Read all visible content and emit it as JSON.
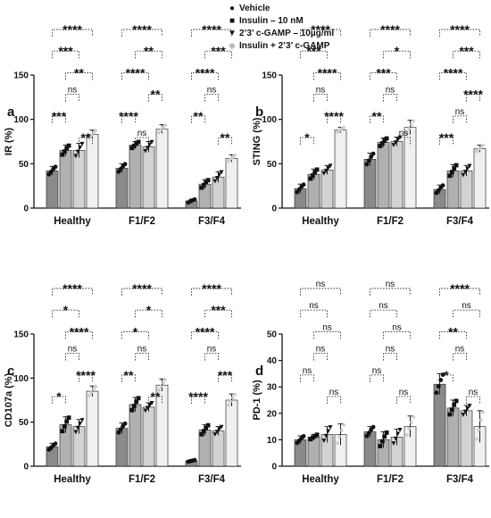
{
  "legend": {
    "items": [
      {
        "label": "Vehicle",
        "fill": "#8a8a8a",
        "marker": "●"
      },
      {
        "label": "Insulin – 10 nM",
        "fill": "#b0b0b0",
        "marker": "■"
      },
      {
        "label": "2’3’ c-GAMP – 10µg/ml",
        "fill": "#d2d2d2",
        "marker": "▼"
      },
      {
        "label": "Insulin + 2’3’ c-GAMP",
        "fill": "#f0f0f0",
        "marker": "◆"
      }
    ]
  },
  "chart_data": [
    {
      "panel": "a",
      "type": "bar",
      "ylabel": "IR (%)",
      "ylim": [
        0,
        150
      ],
      "yticks": [
        "0",
        "50",
        "100",
        "150"
      ],
      "categories": [
        "Healthy",
        "F1/F2",
        "F3/F4"
      ],
      "series": [
        {
          "name": "Vehicle",
          "values": [
            42,
            45,
            8
          ],
          "err": [
            5,
            5,
            2
          ]
        },
        {
          "name": "Insulin – 10 nM",
          "values": [
            65,
            71,
            27
          ],
          "err": [
            6,
            4,
            5
          ]
        },
        {
          "name": "2’3’ c-GAMP – 10µg/ml",
          "values": [
            65,
            69,
            35
          ],
          "err": [
            8,
            6,
            6
          ]
        },
        {
          "name": "Insulin + 2’3’ c-GAMP",
          "values": [
            83,
            89,
            56
          ],
          "err": [
            5,
            5,
            4
          ]
        }
      ],
      "significance": [
        [
          {
            "a": 0,
            "b": 3,
            "label": "****"
          },
          {
            "a": 0,
            "b": 2,
            "label": "***"
          },
          {
            "a": 1,
            "b": 3,
            "label": "**"
          },
          {
            "a": 1,
            "b": 2,
            "label": "ns"
          },
          {
            "a": 0,
            "b": 1,
            "label": "***"
          },
          {
            "a": 2,
            "b": 3,
            "label": "**"
          }
        ],
        [
          {
            "a": 0,
            "b": 3,
            "label": "****"
          },
          {
            "a": 1,
            "b": 3,
            "label": "**"
          },
          {
            "a": 0,
            "b": 2,
            "label": "****"
          },
          {
            "a": 2,
            "b": 3,
            "label": "**"
          },
          {
            "a": 0,
            "b": 1,
            "label": "****"
          },
          {
            "a": 1,
            "b": 2,
            "label": "ns"
          }
        ],
        [
          {
            "a": 0,
            "b": 3,
            "label": "****"
          },
          {
            "a": 1,
            "b": 3,
            "label": "***"
          },
          {
            "a": 0,
            "b": 2,
            "label": "****"
          },
          {
            "a": 1,
            "b": 2,
            "label": "ns"
          },
          {
            "a": 0,
            "b": 1,
            "label": "**"
          },
          {
            "a": 2,
            "b": 3,
            "label": "**"
          }
        ]
      ]
    },
    {
      "panel": "b",
      "type": "bar",
      "ylabel": "STING (%)",
      "ylim": [
        0,
        150
      ],
      "yticks": [
        "0",
        "50",
        "100",
        "150"
      ],
      "categories": [
        "Healthy",
        "F1/F2",
        "F3/F4"
      ],
      "series": [
        {
          "name": "Vehicle",
          "values": [
            22,
            55,
            21
          ],
          "err": [
            5,
            7,
            5
          ]
        },
        {
          "name": "Insulin – 10 nM",
          "values": [
            38,
            74,
            42
          ],
          "err": [
            6,
            5,
            7
          ]
        },
        {
          "name": "2’3’ c-GAMP – 10µg/ml",
          "values": [
            43,
            75,
            42
          ],
          "err": [
            5,
            5,
            6
          ]
        },
        {
          "name": "Insulin + 2’3’ c-GAMP",
          "values": [
            88,
            91,
            67
          ],
          "err": [
            3,
            8,
            4
          ]
        }
      ],
      "significance": [
        [
          {
            "a": 0,
            "b": 3,
            "label": "****"
          },
          {
            "a": 0,
            "b": 2,
            "label": "***"
          },
          {
            "a": 1,
            "b": 3,
            "label": "****"
          },
          {
            "a": 1,
            "b": 2,
            "label": "ns"
          },
          {
            "a": 2,
            "b": 3,
            "label": "****"
          },
          {
            "a": 0,
            "b": 1,
            "label": "*"
          }
        ],
        [
          {
            "a": 0,
            "b": 3,
            "label": "****"
          },
          {
            "a": 1,
            "b": 3,
            "label": "*"
          },
          {
            "a": 0,
            "b": 2,
            "label": "***"
          },
          {
            "a": 1,
            "b": 2,
            "label": "ns"
          },
          {
            "a": 0,
            "b": 1,
            "label": "**"
          },
          {
            "a": 2,
            "b": 3,
            "label": "ns"
          }
        ],
        [
          {
            "a": 0,
            "b": 3,
            "label": "****"
          },
          {
            "a": 1,
            "b": 3,
            "label": "***"
          },
          {
            "a": 0,
            "b": 2,
            "label": "****"
          },
          {
            "a": 2,
            "b": 3,
            "label": "****"
          },
          {
            "a": 1,
            "b": 2,
            "label": "ns"
          },
          {
            "a": 0,
            "b": 1,
            "label": "***"
          }
        ]
      ]
    },
    {
      "panel": "c",
      "type": "bar",
      "ylabel": "CD107a (%)",
      "ylim": [
        0,
        150
      ],
      "yticks": [
        "0",
        "50",
        "100",
        "150"
      ],
      "categories": [
        "Healthy",
        "F1/F2",
        "F3/F4"
      ],
      "series": [
        {
          "name": "Vehicle",
          "values": [
            22,
            43,
            6
          ],
          "err": [
            4,
            6,
            1
          ]
        },
        {
          "name": "Insulin – 10 nM",
          "values": [
            47,
            70,
            41
          ],
          "err": [
            9,
            8,
            6
          ]
        },
        {
          "name": "2’3’ c-GAMP – 10µg/ml",
          "values": [
            45,
            67,
            40
          ],
          "err": [
            8,
            5,
            5
          ]
        },
        {
          "name": "Insulin + 2’3’ c-GAMP",
          "values": [
            85,
            92,
            75
          ],
          "err": [
            6,
            7,
            7
          ]
        }
      ],
      "significance": [
        [
          {
            "a": 0,
            "b": 3,
            "label": "****"
          },
          {
            "a": 0,
            "b": 2,
            "label": "*"
          },
          {
            "a": 1,
            "b": 3,
            "label": "****"
          },
          {
            "a": 1,
            "b": 2,
            "label": "ns"
          },
          {
            "a": 2,
            "b": 3,
            "label": "****"
          },
          {
            "a": 0,
            "b": 1,
            "label": "*"
          }
        ],
        [
          {
            "a": 0,
            "b": 3,
            "label": "****"
          },
          {
            "a": 1,
            "b": 3,
            "label": "*"
          },
          {
            "a": 0,
            "b": 2,
            "label": "*"
          },
          {
            "a": 1,
            "b": 2,
            "label": "ns"
          },
          {
            "a": 0,
            "b": 1,
            "label": "**"
          },
          {
            "a": 2,
            "b": 3,
            "label": "**"
          }
        ],
        [
          {
            "a": 0,
            "b": 3,
            "label": "****"
          },
          {
            "a": 1,
            "b": 3,
            "label": "***"
          },
          {
            "a": 0,
            "b": 2,
            "label": "****"
          },
          {
            "a": 1,
            "b": 2,
            "label": "ns"
          },
          {
            "a": 2,
            "b": 3,
            "label": "***"
          },
          {
            "a": 0,
            "b": 1,
            "label": "****"
          }
        ]
      ]
    },
    {
      "panel": "d",
      "type": "bar",
      "ylabel": "PD-1 (%)",
      "ylim": [
        0,
        50
      ],
      "yticks": [
        "0",
        "10",
        "20",
        "30",
        "40",
        "50"
      ],
      "categories": [
        "Healthy",
        "F1/F2",
        "F3/F4"
      ],
      "series": [
        {
          "name": "Vehicle",
          "values": [
            10,
            13,
            31
          ],
          "err": [
            1.5,
            2,
            4
          ]
        },
        {
          "name": "Insulin – 10 nM",
          "values": [
            11,
            10,
            22
          ],
          "err": [
            1,
            3,
            3
          ]
        },
        {
          "name": "2’3’ c-GAMP – 10µg/ml",
          "values": [
            12,
            11,
            21
          ],
          "err": [
            3,
            3,
            2
          ]
        },
        {
          "name": "Insulin + 2’3’ c-GAMP",
          "values": [
            12,
            15,
            15
          ],
          "err": [
            4,
            4,
            6
          ]
        }
      ],
      "significance": [
        [
          {
            "a": 0,
            "b": 3,
            "label": "ns"
          },
          {
            "a": 0,
            "b": 2,
            "label": "ns"
          },
          {
            "a": 1,
            "b": 3,
            "label": "ns"
          },
          {
            "a": 1,
            "b": 2,
            "label": "ns"
          },
          {
            "a": 0,
            "b": 1,
            "label": "ns"
          },
          {
            "a": 2,
            "b": 3,
            "label": "ns"
          }
        ],
        [
          {
            "a": 0,
            "b": 3,
            "label": "ns"
          },
          {
            "a": 0,
            "b": 2,
            "label": "ns"
          },
          {
            "a": 1,
            "b": 3,
            "label": "ns"
          },
          {
            "a": 1,
            "b": 2,
            "label": "ns"
          },
          {
            "a": 0,
            "b": 1,
            "label": "ns"
          },
          {
            "a": 2,
            "b": 3,
            "label": "ns"
          }
        ],
        [
          {
            "a": 0,
            "b": 3,
            "label": "****"
          },
          {
            "a": 1,
            "b": 3,
            "label": "ns"
          },
          {
            "a": 0,
            "b": 2,
            "label": "**"
          },
          {
            "a": 1,
            "b": 2,
            "label": "ns"
          },
          {
            "a": 0,
            "b": 1,
            "label": "*"
          },
          {
            "a": 2,
            "b": 3,
            "label": "ns"
          }
        ]
      ]
    }
  ]
}
